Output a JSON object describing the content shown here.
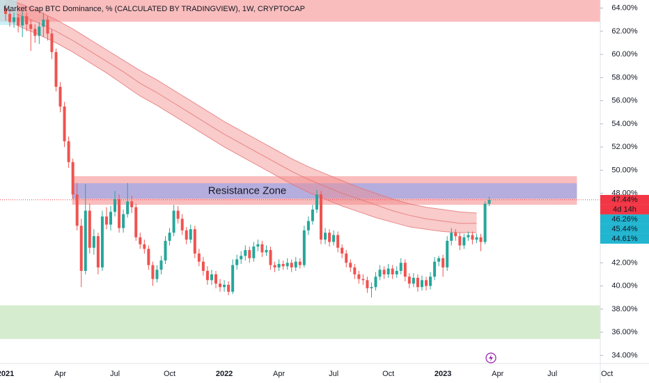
{
  "chart_data": {
    "type": "candlestick",
    "title": "Market Cap BTC Dominance, % (CALCULATED BY TRADINGVIEW), 1W, CRYPTOCAP",
    "up_color": "#26a69a",
    "down_color": "#ef5350",
    "ylim": [
      33.3,
      64.7
    ],
    "yticks": [
      {
        "value": 64,
        "label": "64.00%"
      },
      {
        "value": 62,
        "label": "62.00%"
      },
      {
        "value": 60,
        "label": "60.00%"
      },
      {
        "value": 58,
        "label": "58.00%"
      },
      {
        "value": 56,
        "label": "56.00%"
      },
      {
        "value": 54,
        "label": "54.00%"
      },
      {
        "value": 52,
        "label": "52.00%"
      },
      {
        "value": 50,
        "label": "50.00%"
      },
      {
        "value": 48,
        "label": "48.00%"
      },
      {
        "value": 42,
        "label": "42.00%"
      },
      {
        "value": 40,
        "label": "40.00%"
      },
      {
        "value": 38,
        "label": "38.00%"
      },
      {
        "value": 36,
        "label": "36.00%"
      },
      {
        "value": 34,
        "label": "34.00%"
      }
    ],
    "xtick_labels": [
      "2021",
      "Apr",
      "Jul",
      "Oct",
      "2022",
      "Apr",
      "Jul",
      "Oct",
      "2023",
      "Apr",
      "Jul",
      "Oct"
    ],
    "candles": [
      [
        64.0,
        64.3,
        62.9,
        63.5
      ],
      [
        63.5,
        63.9,
        62.4,
        62.8
      ],
      [
        62.8,
        63.6,
        62.3,
        63.2
      ],
      [
        63.2,
        63.5,
        61.9,
        62.5
      ],
      [
        62.5,
        63.7,
        61.5,
        63.3
      ],
      [
        63.3,
        63.6,
        62.0,
        62.6
      ],
      [
        62.6,
        63.0,
        60.3,
        62.2
      ],
      [
        62.2,
        62.6,
        61.0,
        61.6
      ],
      [
        61.6,
        62.8,
        60.9,
        62.4
      ],
      [
        62.4,
        63.6,
        61.5,
        63.0
      ],
      [
        63.0,
        63.3,
        61.2,
        61.8
      ],
      [
        61.8,
        62.2,
        59.6,
        60.2
      ],
      [
        60.2,
        60.5,
        56.8,
        57.2
      ],
      [
        57.2,
        57.6,
        55.0,
        55.5
      ],
      [
        55.5,
        55.9,
        52.0,
        52.5
      ],
      [
        52.5,
        52.9,
        50.2,
        50.7
      ],
      [
        50.7,
        51.0,
        47.5,
        47.9
      ],
      [
        47.9,
        48.9,
        44.8,
        45.2
      ],
      [
        45.2,
        45.8,
        39.9,
        41.3
      ],
      [
        41.3,
        48.8,
        41.0,
        46.5
      ],
      [
        46.5,
        47.1,
        42.8,
        43.3
      ],
      [
        43.3,
        44.9,
        42.7,
        44.3
      ],
      [
        44.3,
        44.6,
        41.0,
        41.6
      ],
      [
        41.6,
        46.5,
        41.3,
        46.0
      ],
      [
        46.0,
        46.8,
        44.9,
        45.3
      ],
      [
        45.3,
        46.9,
        44.8,
        46.4
      ],
      [
        46.4,
        48.2,
        46.0,
        47.5
      ],
      [
        47.5,
        47.9,
        44.6,
        45.0
      ],
      [
        45.0,
        46.6,
        44.6,
        46.2
      ],
      [
        46.2,
        48.9,
        45.9,
        47.3
      ],
      [
        47.3,
        47.8,
        46.3,
        46.8
      ],
      [
        46.8,
        47.1,
        43.9,
        44.2
      ],
      [
        44.2,
        44.6,
        43.2,
        43.6
      ],
      [
        43.6,
        44.0,
        42.8,
        43.2
      ],
      [
        43.2,
        43.5,
        41.4,
        41.8
      ],
      [
        41.8,
        42.1,
        40.0,
        40.6
      ],
      [
        40.6,
        41.8,
        40.3,
        41.4
      ],
      [
        41.4,
        42.6,
        41.0,
        42.2
      ],
      [
        42.2,
        44.3,
        41.9,
        43.9
      ],
      [
        43.9,
        45.0,
        43.5,
        44.6
      ],
      [
        44.6,
        47.0,
        44.3,
        46.5
      ],
      [
        46.5,
        46.9,
        45.4,
        45.8
      ],
      [
        45.8,
        46.2,
        44.4,
        44.8
      ],
      [
        44.8,
        45.1,
        43.6,
        44.0
      ],
      [
        44.0,
        45.3,
        43.7,
        44.9
      ],
      [
        44.9,
        45.2,
        42.4,
        42.8
      ],
      [
        42.8,
        43.2,
        41.7,
        42.1
      ],
      [
        42.1,
        42.5,
        40.9,
        41.3
      ],
      [
        41.3,
        41.7,
        40.1,
        40.5
      ],
      [
        40.5,
        41.4,
        40.1,
        41.0
      ],
      [
        41.0,
        41.3,
        39.8,
        40.2
      ],
      [
        40.2,
        40.6,
        39.5,
        39.9
      ],
      [
        39.9,
        40.5,
        39.5,
        40.1
      ],
      [
        40.1,
        40.4,
        39.2,
        39.5
      ],
      [
        39.5,
        42.3,
        39.3,
        41.8
      ],
      [
        41.8,
        42.7,
        41.4,
        42.3
      ],
      [
        42.3,
        43.0,
        41.9,
        42.6
      ],
      [
        42.6,
        43.5,
        42.2,
        43.1
      ],
      [
        43.1,
        43.4,
        42.0,
        42.4
      ],
      [
        42.4,
        43.8,
        42.1,
        43.4
      ],
      [
        43.4,
        44.0,
        43.0,
        43.6
      ],
      [
        43.6,
        43.9,
        42.5,
        42.9
      ],
      [
        42.9,
        43.5,
        42.6,
        43.1
      ],
      [
        43.1,
        43.4,
        41.4,
        41.8
      ],
      [
        41.8,
        42.1,
        41.2,
        41.6
      ],
      [
        41.6,
        42.3,
        41.3,
        41.9
      ],
      [
        41.9,
        42.2,
        41.4,
        41.7
      ],
      [
        41.7,
        42.4,
        41.4,
        42.0
      ],
      [
        42.0,
        42.3,
        41.2,
        41.6
      ],
      [
        41.6,
        42.5,
        41.3,
        42.1
      ],
      [
        42.1,
        42.4,
        41.5,
        41.8
      ],
      [
        41.8,
        45.2,
        41.6,
        44.8
      ],
      [
        44.8,
        46.0,
        44.4,
        45.6
      ],
      [
        45.6,
        47.0,
        45.3,
        46.6
      ],
      [
        46.6,
        48.3,
        46.3,
        47.9
      ],
      [
        47.9,
        48.2,
        43.6,
        44.0
      ],
      [
        44.0,
        45.0,
        43.6,
        44.6
      ],
      [
        44.6,
        44.9,
        43.4,
        43.8
      ],
      [
        43.8,
        44.8,
        43.5,
        44.4
      ],
      [
        44.4,
        44.7,
        42.9,
        43.3
      ],
      [
        43.3,
        43.6,
        42.4,
        42.8
      ],
      [
        42.8,
        43.1,
        41.6,
        42.0
      ],
      [
        42.0,
        42.3,
        41.2,
        41.6
      ],
      [
        41.6,
        41.9,
        40.6,
        41.0
      ],
      [
        41.0,
        41.3,
        40.2,
        40.6
      ],
      [
        40.6,
        41.0,
        40.1,
        40.5
      ],
      [
        40.5,
        40.8,
        39.4,
        39.8
      ],
      [
        39.8,
        40.3,
        39.0,
        39.9
      ],
      [
        39.9,
        41.2,
        39.6,
        40.8
      ],
      [
        40.8,
        41.8,
        40.5,
        41.4
      ],
      [
        41.4,
        41.7,
        40.6,
        41.0
      ],
      [
        41.0,
        41.9,
        40.7,
        41.5
      ],
      [
        41.5,
        41.8,
        40.6,
        41.0
      ],
      [
        41.0,
        41.7,
        40.7,
        41.3
      ],
      [
        41.3,
        42.4,
        41.0,
        42.0
      ],
      [
        42.0,
        42.3,
        40.4,
        40.8
      ],
      [
        40.8,
        41.1,
        39.8,
        40.2
      ],
      [
        40.2,
        41.1,
        39.9,
        40.7
      ],
      [
        40.7,
        41.0,
        39.5,
        39.9
      ],
      [
        39.9,
        40.9,
        39.6,
        40.5
      ],
      [
        40.5,
        40.8,
        39.6,
        40.0
      ],
      [
        40.0,
        41.2,
        39.7,
        40.8
      ],
      [
        40.8,
        42.5,
        40.5,
        42.1
      ],
      [
        42.1,
        42.6,
        41.7,
        42.4
      ],
      [
        42.4,
        42.7,
        40.8,
        41.6
      ],
      [
        41.6,
        44.3,
        41.3,
        43.9
      ],
      [
        43.9,
        45.0,
        43.5,
        44.6
      ],
      [
        44.6,
        44.9,
        43.9,
        44.3
      ],
      [
        44.3,
        44.6,
        43.1,
        43.5
      ],
      [
        43.5,
        44.5,
        43.2,
        44.2
      ],
      [
        44.2,
        44.7,
        43.9,
        44.4
      ],
      [
        44.4,
        44.7,
        43.6,
        44.0
      ],
      [
        44.0,
        44.5,
        43.7,
        44.2
      ],
      [
        44.2,
        44.5,
        43.0,
        43.8
      ],
      [
        43.8,
        47.3,
        43.6,
        47.1
      ],
      [
        47.1,
        47.7,
        46.9,
        47.44
      ]
    ],
    "ribbon": {
      "color": "#f28b8b",
      "upper": [
        64.8,
        64.3,
        63.7,
        63.0,
        62.2,
        61.3,
        60.4,
        59.5,
        58.6,
        57.8,
        56.9,
        56.0,
        55.1,
        54.2,
        53.4,
        52.6,
        51.8,
        51.0,
        50.3,
        49.7,
        49.1,
        48.5,
        48.0,
        47.5,
        47.1,
        46.8,
        46.6,
        46.4,
        46.3
      ],
      "middle": [
        63.9,
        63.3,
        62.7,
        62.0,
        61.2,
        60.3,
        59.4,
        58.5,
        57.5,
        56.7,
        55.8,
        54.9,
        54.0,
        53.1,
        52.3,
        51.5,
        50.7,
        49.9,
        49.2,
        48.6,
        48.0,
        47.5,
        47.0,
        46.5,
        46.1,
        45.8,
        45.6,
        45.4,
        45.4
      ],
      "lower": [
        63.0,
        62.3,
        61.7,
        61.0,
        60.2,
        59.3,
        58.4,
        57.4,
        56.4,
        55.6,
        54.7,
        53.8,
        52.9,
        52.0,
        51.2,
        50.4,
        49.6,
        48.8,
        48.1,
        47.5,
        46.9,
        46.4,
        45.9,
        45.5,
        45.1,
        44.9,
        44.7,
        44.6,
        44.6
      ]
    },
    "zones": [
      {
        "from": 62.85,
        "to": 64.7,
        "color": "#f7a8a8"
      },
      {
        "from": 47.04,
        "to": 49.45,
        "color": "#f7a8a8"
      },
      {
        "from": 47.57,
        "to": 48.84,
        "color": "#9fa8e8"
      },
      {
        "from": 35.45,
        "to": 38.29,
        "color": "#c8e6c0"
      }
    ],
    "annotations": [
      {
        "text": "Resistance Zone",
        "value": 48.2
      }
    ],
    "price_tags": [
      {
        "value": 47.44,
        "label": "47.44%",
        "countdown": "4d 14h",
        "color": "#f23645"
      },
      {
        "value": 46.26,
        "label": "46.26%",
        "color": "#22b5d0"
      },
      {
        "value": 45.44,
        "label": "45.44%",
        "color": "#22b5d0"
      },
      {
        "value": 44.61,
        "label": "44.61%",
        "color": "#22b5d0"
      }
    ]
  }
}
